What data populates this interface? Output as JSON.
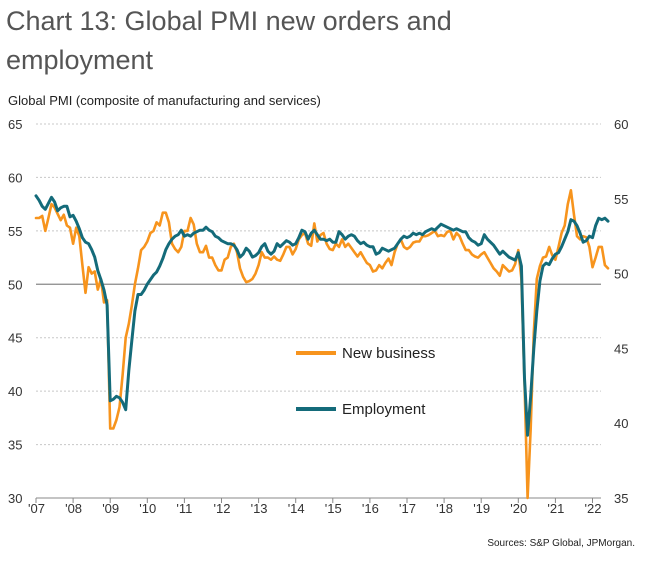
{
  "title": "Chart 13: Global PMI new orders and employment",
  "subtitle": "Global PMI (composite of manufacturing and services)",
  "source": "Sources: S&P Global, JPMorgan.",
  "colors": {
    "new_business": "#F7941D",
    "employment": "#146B7A",
    "grid": "#c8c8c8",
    "axis": "#888888"
  },
  "chart_data": {
    "type": "line",
    "x_start": "Jan 2007",
    "x_end": "Jun 2022",
    "x_tick_labels": [
      "'07",
      "'08",
      "'09",
      "'10",
      "'11",
      "'12",
      "'13",
      "'14",
      "'15",
      "'16",
      "'17",
      "'18",
      "'19",
      "'20",
      "'21",
      "'22"
    ],
    "y_left": {
      "ticks": [
        "65",
        "60",
        "55",
        "50",
        "45",
        "40",
        "35",
        "30"
      ],
      "range": [
        30,
        65
      ]
    },
    "y_right": {
      "ticks": [
        "60",
        "55",
        "50",
        "45",
        "40",
        "35"
      ],
      "range": [
        35,
        60
      ]
    },
    "grid": true,
    "legend_position": "center",
    "series": [
      {
        "name": "New business",
        "axis": "left",
        "values": [
          56.2,
          56.2,
          56.4,
          55,
          56.2,
          57.5,
          57.2,
          56.6,
          56,
          56.5,
          55.5,
          55.3,
          53.8,
          55.3,
          54.5,
          51.8,
          49.2,
          51.6,
          51,
          51.2,
          49.5,
          50.5,
          48.3,
          48.5,
          36.5,
          36.5,
          37.3,
          38.5,
          41.5,
          45,
          46.3,
          48,
          50,
          51.5,
          53.2,
          53.5,
          54,
          54.8,
          55,
          55.8,
          55.5,
          56.7,
          56.7,
          55.8,
          53.8,
          53.3,
          53,
          53.5,
          55,
          55,
          56.2,
          55.6,
          53.8,
          53,
          53,
          53.6,
          52.5,
          52.5,
          51.8,
          51.3,
          51.3,
          52.3,
          52.5,
          53.5,
          53.8,
          53,
          51.5,
          50.7,
          50.2,
          50.3,
          50.5,
          51,
          51.8,
          53,
          52.5,
          52.5,
          52.3,
          52.6,
          52.3,
          52.2,
          52.8,
          53.5,
          53.5,
          52.8,
          53.3,
          54.2,
          54.6,
          54.8,
          53.8,
          53.6,
          55.7,
          54,
          54.6,
          54.8,
          53.8,
          53.3,
          53.2,
          53.8,
          53.5,
          54.2,
          53.5,
          53.8,
          53.4,
          53,
          52.6,
          53,
          52.5,
          52,
          51.8,
          51.2,
          51.3,
          51.8,
          51.5,
          52,
          52.4,
          51.8,
          53,
          53.8,
          54.2,
          53.5,
          53.3,
          53.5,
          53.9,
          54,
          54,
          54.5,
          54.5,
          54.6,
          54.8,
          55,
          54.5,
          54.6,
          54.5,
          54.9,
          55,
          54.2,
          54.8,
          54.5,
          53.8,
          53.2,
          53.2,
          52.8,
          52.6,
          52.5,
          52.8,
          53,
          52.5,
          52,
          51.5,
          51.2,
          50.8,
          51.8,
          51.5,
          51.2,
          51.3,
          51.9,
          53.2,
          50.5,
          40.8,
          30,
          36.5,
          45.5,
          50.5,
          51.7,
          52.5,
          52.6,
          53.5,
          52.7,
          52.3,
          53.5,
          54.8,
          55.5,
          57.5,
          58.8,
          56.5,
          54.5,
          54.2,
          54.5,
          54.4,
          53.5,
          51.6,
          52.5,
          53.5,
          53.5,
          51.8,
          51.5
        ]
      },
      {
        "name": "Employment",
        "axis": "right",
        "values": [
          55.2,
          54.9,
          54.5,
          54.3,
          54.7,
          55.1,
          54.8,
          54.2,
          54.4,
          54.5,
          54.5,
          53.8,
          53.9,
          53.5,
          53,
          52.4,
          52.1,
          52,
          51.6,
          51.1,
          50.2,
          49.6,
          48.9,
          47.9,
          41.5,
          41.6,
          41.8,
          41.7,
          41.4,
          40.9,
          43.5,
          45.5,
          47.5,
          48.6,
          48.6,
          48.9,
          49.3,
          49.6,
          49.9,
          50.1,
          50.5,
          51,
          51.6,
          52,
          52.3,
          52.5,
          52.6,
          52.9,
          52.5,
          52.6,
          52.5,
          52.7,
          52.8,
          52.9,
          52.9,
          53.1,
          52.9,
          52.8,
          52.5,
          52.4,
          52.2,
          52.1,
          52,
          52,
          51.9,
          51.6,
          51.1,
          51.3,
          51.7,
          51.5,
          51.1,
          51.2,
          51.4,
          51.8,
          52,
          51.5,
          51.3,
          51.5,
          52,
          51.8,
          52,
          52.2,
          52.1,
          51.9,
          52,
          52.4,
          52.9,
          52.8,
          52.3,
          52.7,
          52.9,
          52.6,
          52.3,
          52.3,
          52.2,
          52.3,
          52.1,
          52.1,
          52.8,
          52.6,
          52.3,
          52.5,
          52.6,
          52.5,
          52.2,
          52,
          52.1,
          51.9,
          51.8,
          51.8,
          51.3,
          51.4,
          51.7,
          51.6,
          51.5,
          51.6,
          51.7,
          52,
          52.3,
          52.5,
          52.4,
          52.5,
          52.7,
          52.6,
          52.7,
          52.6,
          52.8,
          52.9,
          53,
          52.9,
          53.1,
          53.3,
          53.2,
          53.1,
          53,
          52.9,
          53,
          52.9,
          52.8,
          52.8,
          52.4,
          52.2,
          52.1,
          51.9,
          52,
          52.6,
          52.3,
          52.1,
          51.9,
          51.6,
          51.3,
          51.5,
          51.3,
          51.1,
          51,
          50.9,
          51.4,
          50.5,
          43,
          39.2,
          41.8,
          45,
          47.5,
          49.5,
          50.5,
          50.7,
          50.6,
          51,
          51.3,
          51.4,
          51.8,
          52.3,
          52.8,
          53.6,
          53.5,
          53.2,
          52.7,
          52.1,
          52.2,
          52.5,
          52.4,
          53.2,
          53.7,
          53.6,
          53.7,
          53.5
        ]
      }
    ]
  }
}
